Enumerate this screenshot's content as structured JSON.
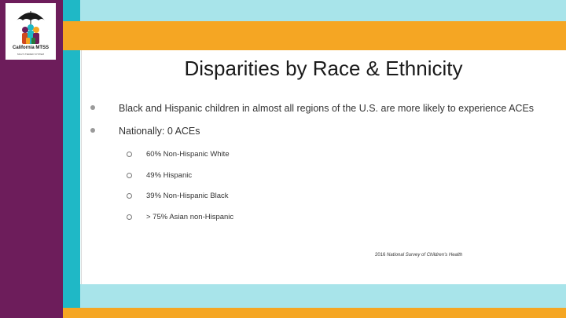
{
  "slide": {
    "title": "Disparities by Race & Ethnicity",
    "bullets": [
      "Black and Hispanic children in almost all regions of the U.S. are more likely to experience ACEs",
      "Nationally: 0 ACEs"
    ],
    "sub_bullets": [
      "60% Non-Hispanic White",
      "49% Hispanic",
      "39% Non-Hispanic Black",
      "> 75% Asian non-Hispanic"
    ],
    "citation_year": "2016",
    "citation_source": "National Survey of Children's Health"
  },
  "logo": {
    "name": "California MTSS",
    "tagline": "MULTI-TIERED SYSTEM"
  },
  "colors": {
    "purple": "#6d1d5b",
    "teal": "#1fb8c6",
    "light_teal": "#a8e4ea",
    "orange": "#f5a623"
  }
}
